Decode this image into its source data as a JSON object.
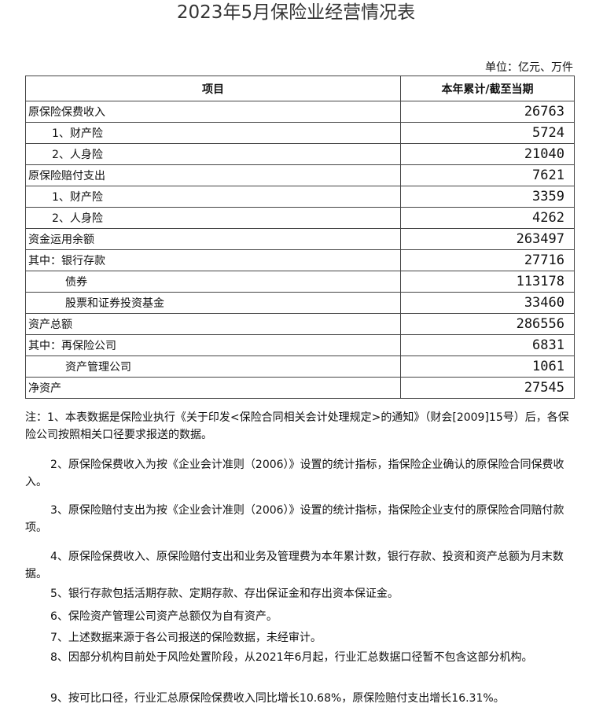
{
  "header": {
    "title": "2023年5月保险业经营情况表",
    "unit": "单位：亿元、万件"
  },
  "table": {
    "columns": [
      "项目",
      "本年累计/截至当期"
    ],
    "rows": [
      [
        "原保险保费收入",
        26763
      ],
      [
        "1、财产险",
        5724
      ],
      [
        "2、人身险",
        21040
      ],
      [
        "原保险赔付支出",
        7621
      ],
      [
        "1、财产险",
        3359
      ],
      [
        "2、人身险",
        4262
      ],
      [
        "资金运用余额",
        263497
      ],
      [
        "其中：银行存款",
        27716
      ],
      [
        "债券",
        113178
      ],
      [
        "股票和证券投资基金",
        33460
      ],
      [
        "资产总额",
        286556
      ],
      [
        "其中：再保险公司",
        6831
      ],
      [
        "资产管理公司",
        1061
      ],
      [
        "净资产",
        27545
      ]
    ]
  },
  "notes": [
    "注：1、本表数据是保险业执行《关于印发<保险合同相关会计处理规定>的通知》（财会[2009]15号）后，各保险公司按照相关口径要求报送的数据。",
    "2、原保险保费收入为按《企业会计准则（2006）》设置的统计指标，指保险企业确认的原保险合同保费收入。",
    "3、原保险赔付支出为按《企业会计准则（2006）》设置的统计指标，指保险企业支付的原保险合同赔付款项。",
    "4、原保险保费收入、原保险赔付支出和业务及管理费为本年累计数，银行存款、投资和资产总额为月末数据。",
    "5、银行存款包括活期存款、定期存款、存出保证金和存出资本保证金。",
    "6、保险资产管理公司资产总额仅为自有资产。",
    "7、上述数据来源于各公司报送的保险数据，未经审计。",
    "8、因部分机构目前处于风险处置阶段，从2021年6月起，行业汇总数据口径暂不包含这部分机构。",
    "9、按可比口径，行业汇总原保险保费收入同比增长10.68%，原保险赔付支出增长16.31%。"
  ]
}
